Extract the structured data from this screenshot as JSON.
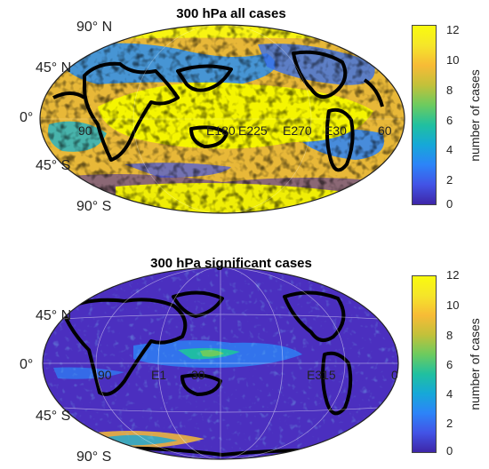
{
  "panels": [
    {
      "title": "300 hPa all cases",
      "lat_labels": {
        "n90": "90° N",
        "n45": "45° N",
        "eq": "0°",
        "s45": "45° S",
        "s90": "90° S"
      },
      "colorbar": {
        "label": "number of cases",
        "ticks": [
          "12",
          "10",
          "8",
          "6",
          "4",
          "2",
          "0"
        ]
      },
      "lon_labels": [
        "90",
        "E180",
        "E225",
        "E270",
        "E30",
        "60"
      ]
    },
    {
      "title": "300 hPa significant cases",
      "lat_labels": {
        "n90": "",
        "n45": "45° N",
        "eq": "0°",
        "s45": "45° S",
        "s90": "90° S"
      },
      "colorbar": {
        "label": "number of cases",
        "ticks": [
          "12",
          "10",
          "8",
          "6",
          "4",
          "2",
          "0"
        ]
      },
      "lon_labels": [
        "90",
        "E1",
        "30",
        "E315",
        "0"
      ]
    }
  ],
  "colors": {
    "colormap": [
      "#3e26a8",
      "#4254e6",
      "#2c84f8",
      "#16a8d8",
      "#20c0a0",
      "#6ccb5f",
      "#c2c13a",
      "#f7bb36",
      "#f5e52a",
      "#f9fb0e"
    ],
    "all_cases_background": "#e8b838",
    "all_cases_core": "#f5f500",
    "significant_background": "#4b2fbf",
    "coastline": "#000000"
  }
}
